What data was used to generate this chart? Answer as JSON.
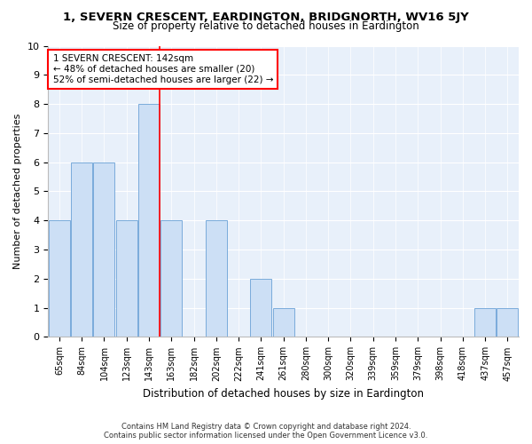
{
  "title": "1, SEVERN CRESCENT, EARDINGTON, BRIDGNORTH, WV16 5JY",
  "subtitle": "Size of property relative to detached houses in Eardington",
  "xlabel": "Distribution of detached houses by size in Eardington",
  "ylabel": "Number of detached properties",
  "categories": [
    "65sqm",
    "84sqm",
    "104sqm",
    "123sqm",
    "143sqm",
    "163sqm",
    "182sqm",
    "202sqm",
    "222sqm",
    "241sqm",
    "261sqm",
    "280sqm",
    "300sqm",
    "320sqm",
    "339sqm",
    "359sqm",
    "379sqm",
    "398sqm",
    "418sqm",
    "437sqm",
    "457sqm"
  ],
  "values": [
    4,
    6,
    6,
    4,
    8,
    4,
    0,
    4,
    0,
    2,
    1,
    0,
    0,
    0,
    0,
    0,
    0,
    0,
    0,
    1,
    1
  ],
  "bar_color": "#ccdff5",
  "bar_edge_color": "#7aabdb",
  "marker_line_index": 4,
  "marker_label": "1 SEVERN CRESCENT: 142sqm",
  "annotation_line1": "← 48% of detached houses are smaller (20)",
  "annotation_line2": "52% of semi-detached houses are larger (22) →",
  "ylim": [
    0,
    10
  ],
  "yticks": [
    0,
    1,
    2,
    3,
    4,
    5,
    6,
    7,
    8,
    9,
    10
  ],
  "background_color": "#e8f0fa",
  "footer1": "Contains HM Land Registry data © Crown copyright and database right 2024.",
  "footer2": "Contains public sector information licensed under the Open Government Licence v3.0."
}
